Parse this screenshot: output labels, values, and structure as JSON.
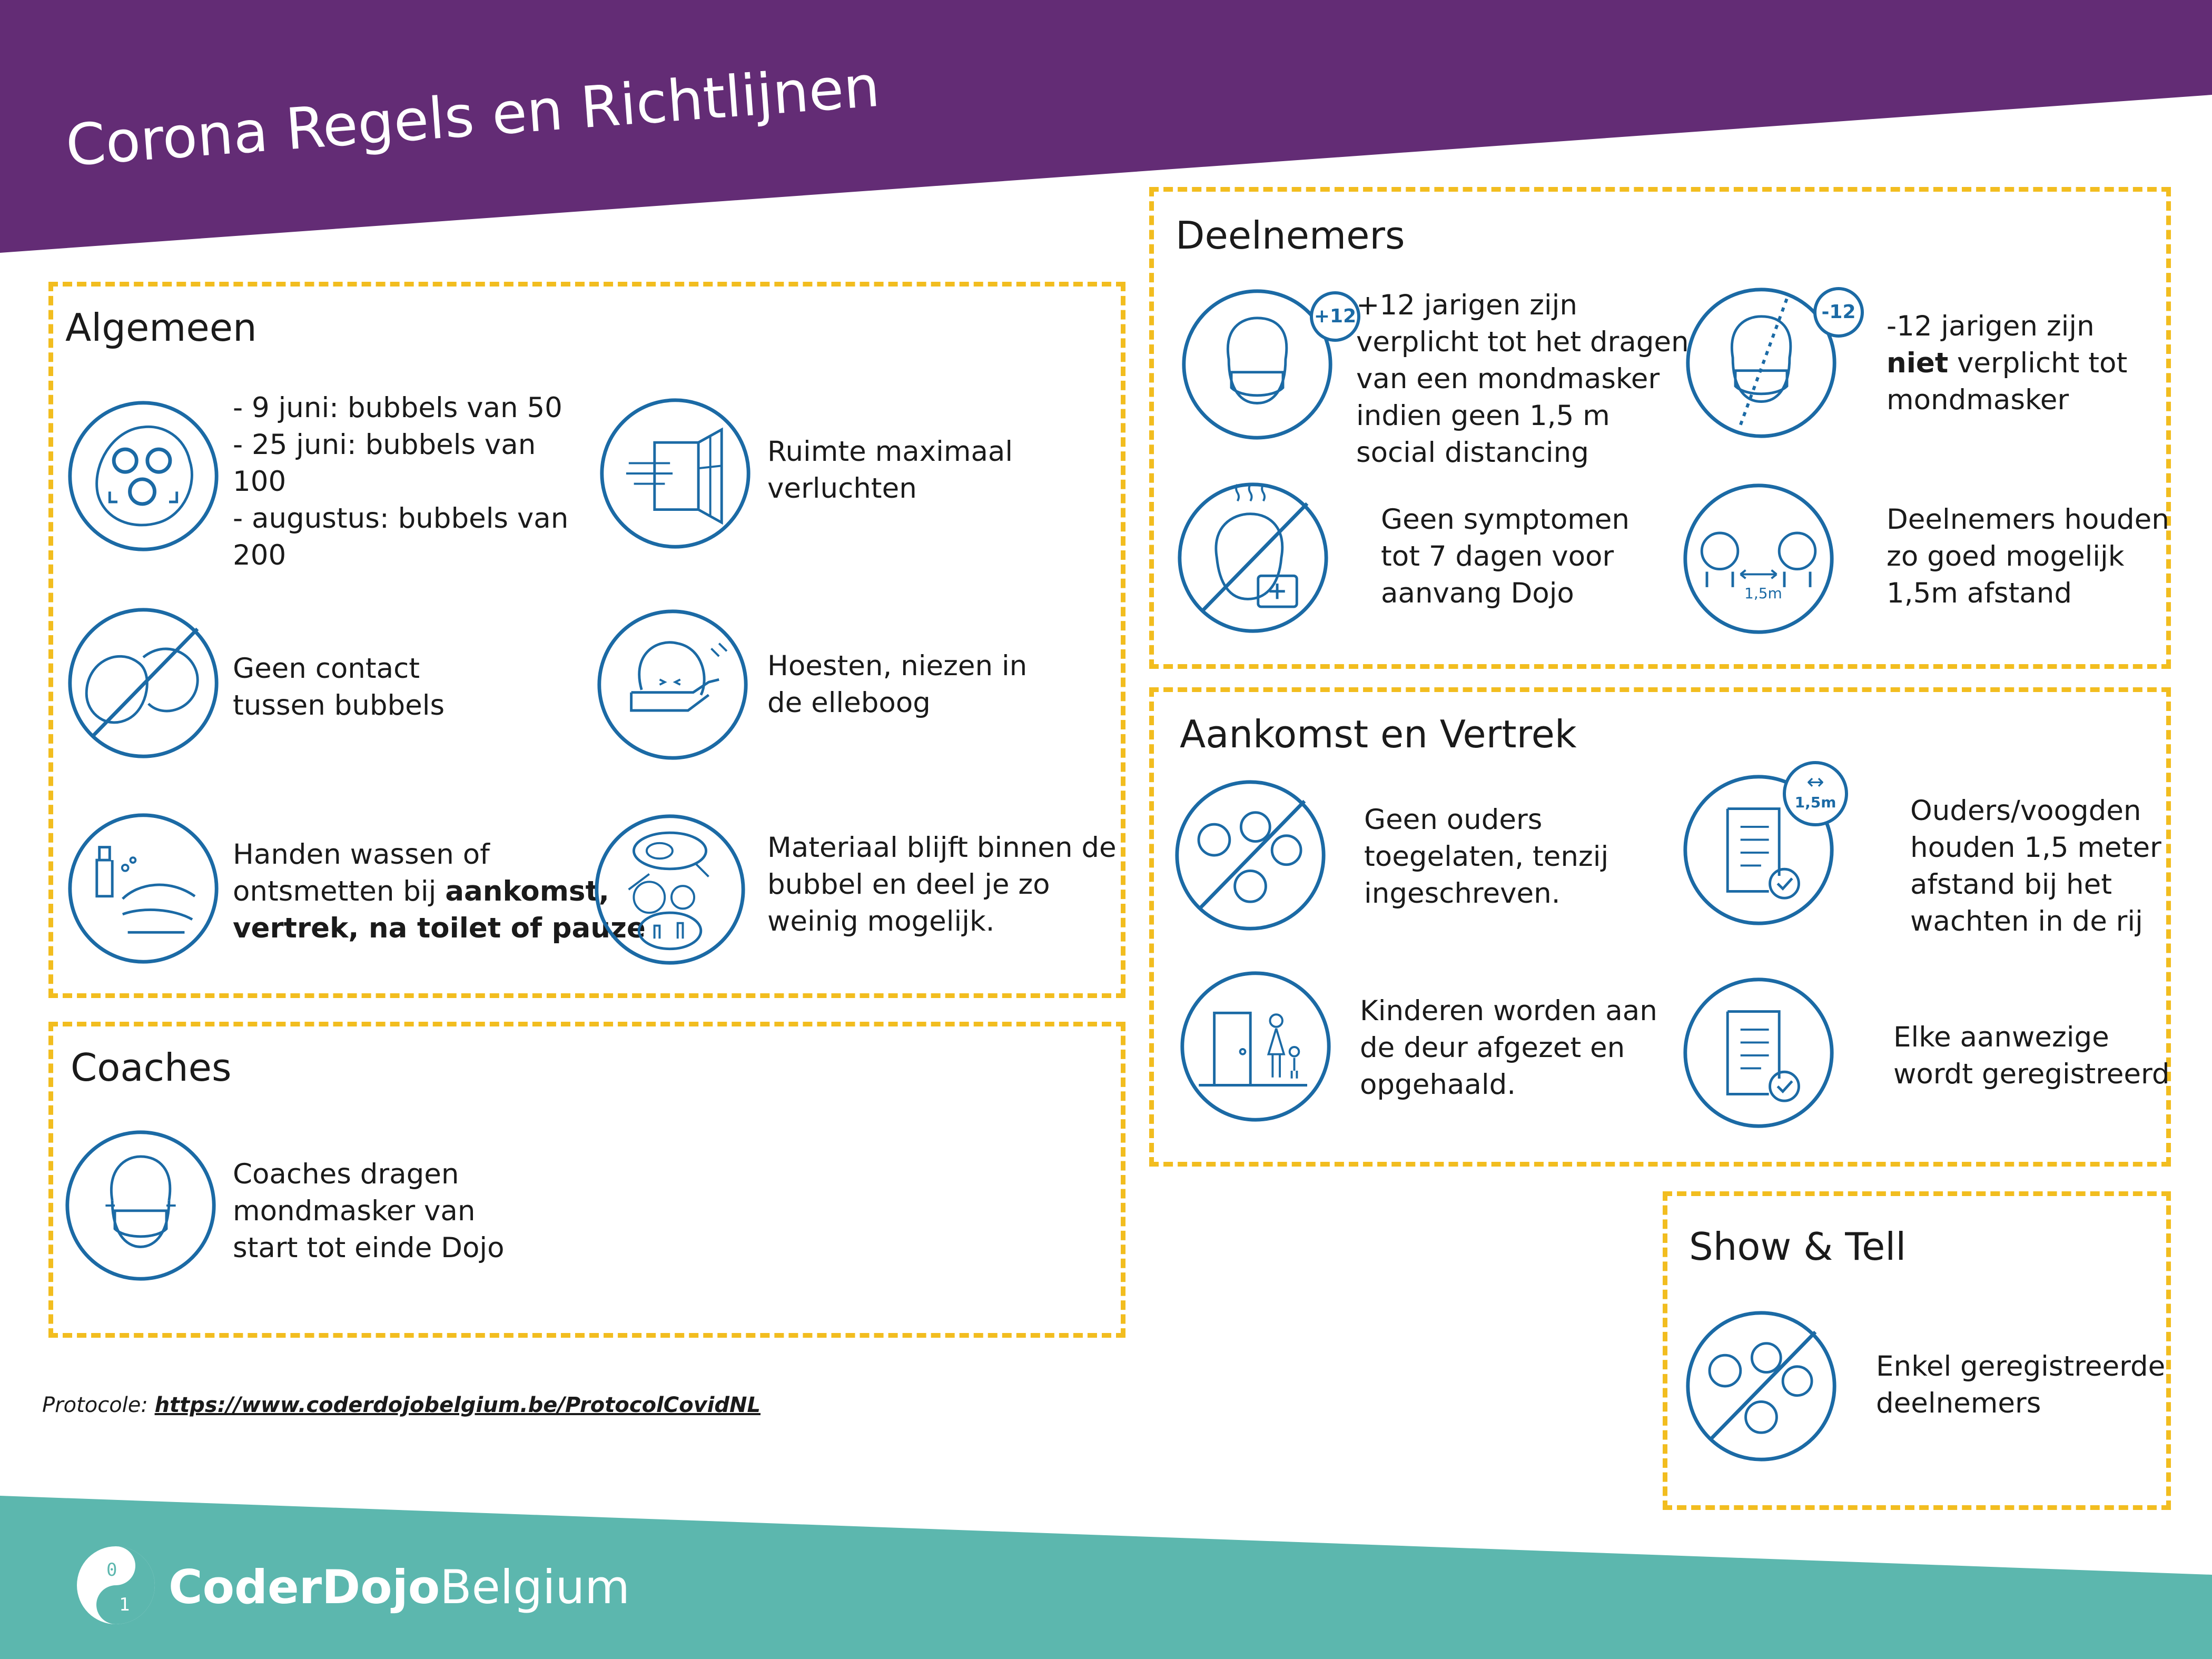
{
  "header": {
    "title": "Corona Regels en Richtlijnen"
  },
  "colors": {
    "purple": "#632c75",
    "teal": "#5cb7ae",
    "dash": "#f2bd1f",
    "icon": "#1b6aa5"
  },
  "algemeen": {
    "heading": "Algemeen",
    "bubbles": {
      "l1": "- 9 juni: bubbels van 50",
      "l2": "-  25 juni: bubbels van",
      "l3": "100",
      "l4": "- augustus: bubbels van",
      "l5": "200",
      "icon": "bubble-group-icon"
    },
    "ventilate": {
      "l1": "Ruimte maximaal",
      "l2": "verluchten",
      "icon": "open-window-icon"
    },
    "no_contact": {
      "l1": "Geen contact",
      "l2": "tussen bubbels",
      "icon": "no-contact-icon"
    },
    "cough": {
      "l1": "Hoesten, niezen in",
      "l2": "de elleboog",
      "icon": "cough-elbow-icon"
    },
    "hands": {
      "l1": "Handen wassen of",
      "l2a": "ontsmetten bij ",
      "l2b": "aankomst,",
      "l3": "vertrek, na toilet of pauze",
      "icon": "hand-wash-icon"
    },
    "material": {
      "l1": "Materiaal blijft binnen de",
      "l2": "bubbel en deel je zo",
      "l3": "weinig mogelijk.",
      "icon": "toys-icon"
    }
  },
  "coaches": {
    "heading": "Coaches",
    "mask": {
      "l1": "Coaches dragen",
      "l2": "mondmasker van",
      "l3": "start tot einde Dojo",
      "icon": "face-mask-icon"
    }
  },
  "deelnemers": {
    "heading": "Deelnemers",
    "plus12": {
      "badge": "+12",
      "l1": "+12 jarigen zijn",
      "l2": "verplicht tot het dragen",
      "l3": "van een mondmasker",
      "l4": "indien geen 1,5 m",
      "l5": "social distancing",
      "icon": "mask-plus12-icon"
    },
    "min12": {
      "badge": "-12",
      "l1": "-12 jarigen zijn",
      "l2a": "niet",
      "l2b": " verplicht tot",
      "l3": "mondmasker",
      "icon": "mask-min12-icon"
    },
    "symptoms": {
      "l1": "Geen symptomen",
      "l2": "tot 7 dagen voor",
      "l3": "aanvang Dojo",
      "icon": "no-symptoms-icon"
    },
    "distance": {
      "label": "1,5m",
      "l1": "Deelnemers houden",
      "l2": "zo goed mogelijk",
      "l3": "1,5m afstand",
      "icon": "distance-icon"
    }
  },
  "aankomst": {
    "heading": "Aankomst en Vertrek",
    "no_parents": {
      "l1": "Geen ouders",
      "l2": "toegelaten, tenzij",
      "l3": "ingeschreven.",
      "icon": "no-parents-icon"
    },
    "queue": {
      "label": "1,5m",
      "l1": "Ouders/voogden",
      "l2": "houden 1,5 meter",
      "l3": "afstand bij het",
      "l4": "wachten in de rij",
      "icon": "checklist-distance-icon"
    },
    "door": {
      "l1": "Kinderen worden aan",
      "l2": "de deur afgezet en",
      "l3": "opgehaald.",
      "icon": "door-icon"
    },
    "register": {
      "l1": "Elke aanwezige",
      "l2": "wordt geregistreerd",
      "icon": "checklist-icon"
    }
  },
  "show_tell": {
    "heading": "Show & Tell",
    "registered": {
      "l1": "Enkel geregistreerde",
      "l2": "deelnemers",
      "icon": "group-crossed-icon"
    }
  },
  "footer": {
    "protocol_label": "Protocole: ",
    "protocol_link": "https://www.coderdojobelgium.be/ProtocolCovidNL",
    "brand_bold": "CoderDojo",
    "brand_rest": "Belgium"
  }
}
